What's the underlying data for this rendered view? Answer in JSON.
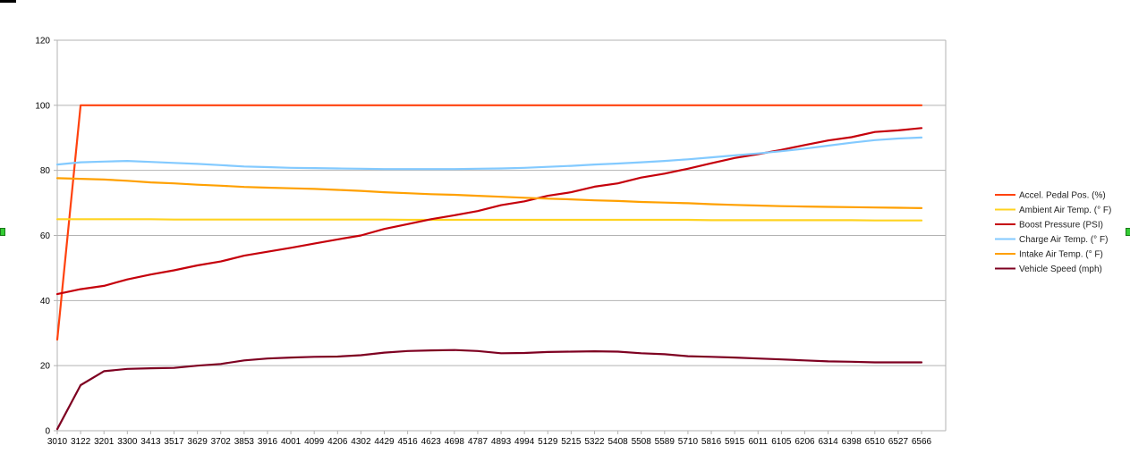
{
  "chart_data": {
    "type": "line",
    "title": "",
    "xlabel": "",
    "ylabel": "",
    "ylim": [
      0,
      120
    ],
    "yticks": [
      0,
      20,
      40,
      60,
      80,
      100,
      120
    ],
    "grid": "horizontal",
    "legend_position": "right",
    "categories": [
      "3010",
      "3122",
      "3201",
      "3300",
      "3413",
      "3517",
      "3629",
      "3702",
      "3853",
      "3916",
      "4001",
      "4099",
      "4206",
      "4302",
      "4429",
      "4516",
      "4623",
      "4698",
      "4787",
      "4893",
      "4994",
      "5129",
      "5215",
      "5322",
      "5408",
      "5508",
      "5589",
      "5710",
      "5816",
      "5915",
      "6011",
      "6105",
      "6206",
      "6314",
      "6398",
      "6510",
      "6527",
      "6566"
    ],
    "series": [
      {
        "name": "Accel. Pedal Pos. (%)",
        "color": "#ff420e",
        "values": [
          28,
          100,
          100,
          100,
          100,
          100,
          100,
          100,
          100,
          100,
          100,
          100,
          100,
          100,
          100,
          100,
          100,
          100,
          100,
          100,
          100,
          100,
          100,
          100,
          100,
          100,
          100,
          100,
          100,
          100,
          100,
          100,
          100,
          100,
          100,
          100,
          100,
          100
        ]
      },
      {
        "name": "Ambient Air Temp. (° F)",
        "color": "#ffd320",
        "values": [
          65,
          65,
          65,
          65,
          65,
          64.9,
          64.9,
          64.9,
          64.9,
          64.9,
          64.9,
          64.9,
          64.9,
          64.9,
          64.9,
          64.8,
          64.8,
          64.8,
          64.8,
          64.8,
          64.8,
          64.8,
          64.8,
          64.8,
          64.8,
          64.8,
          64.8,
          64.8,
          64.7,
          64.7,
          64.7,
          64.7,
          64.7,
          64.7,
          64.7,
          64.6,
          64.6,
          64.6
        ]
      },
      {
        "name": "Boost Pressure (PSI)",
        "color": "#c5000b",
        "values": [
          42,
          43.5,
          44.5,
          46.5,
          48,
          49.3,
          50.8,
          52,
          53.8,
          55,
          56.2,
          57.5,
          58.8,
          60,
          62,
          63.5,
          65,
          66.2,
          67.5,
          69.3,
          70.5,
          72.2,
          73.3,
          75,
          76,
          77.8,
          79,
          80.5,
          82.2,
          83.8,
          85,
          86.3,
          87.8,
          89.2,
          90.2,
          91.8,
          92.3,
          93
        ]
      },
      {
        "name": "Charge Air Temp. (° F)",
        "color": "#83caff",
        "values": [
          81.8,
          82.5,
          82.7,
          82.9,
          82.6,
          82.3,
          82,
          81.6,
          81.2,
          81,
          80.8,
          80.7,
          80.6,
          80.5,
          80.4,
          80.4,
          80.4,
          80.4,
          80.5,
          80.6,
          80.8,
          81.1,
          81.4,
          81.8,
          82.1,
          82.5,
          82.9,
          83.4,
          84,
          84.6,
          85.2,
          85.9,
          86.7,
          87.6,
          88.5,
          89.3,
          89.8,
          90.1
        ]
      },
      {
        "name": "Intake Air Temp. (° F)",
        "color": "#ffa000",
        "values": [
          77.6,
          77.4,
          77.2,
          76.8,
          76.3,
          76,
          75.6,
          75.3,
          74.9,
          74.7,
          74.5,
          74.3,
          74,
          73.7,
          73.3,
          73,
          72.7,
          72.5,
          72.2,
          71.9,
          71.6,
          71.3,
          71.1,
          70.8,
          70.6,
          70.3,
          70.1,
          69.9,
          69.6,
          69.4,
          69.2,
          69,
          68.9,
          68.8,
          68.7,
          68.6,
          68.5,
          68.4
        ]
      },
      {
        "name": "Vehicle Speed (mph)",
        "color": "#7e0021",
        "values": [
          0.5,
          14,
          18.3,
          19,
          19.2,
          19.3,
          20,
          20.5,
          21.6,
          22.2,
          22.5,
          22.7,
          22.8,
          23.2,
          24,
          24.5,
          24.7,
          24.8,
          24.5,
          23.8,
          23.9,
          24.2,
          24.3,
          24.4,
          24.3,
          23.8,
          23.5,
          22.9,
          22.7,
          22.5,
          22.2,
          21.9,
          21.6,
          21.3,
          21.2,
          21,
          21,
          21
        ]
      }
    ]
  }
}
